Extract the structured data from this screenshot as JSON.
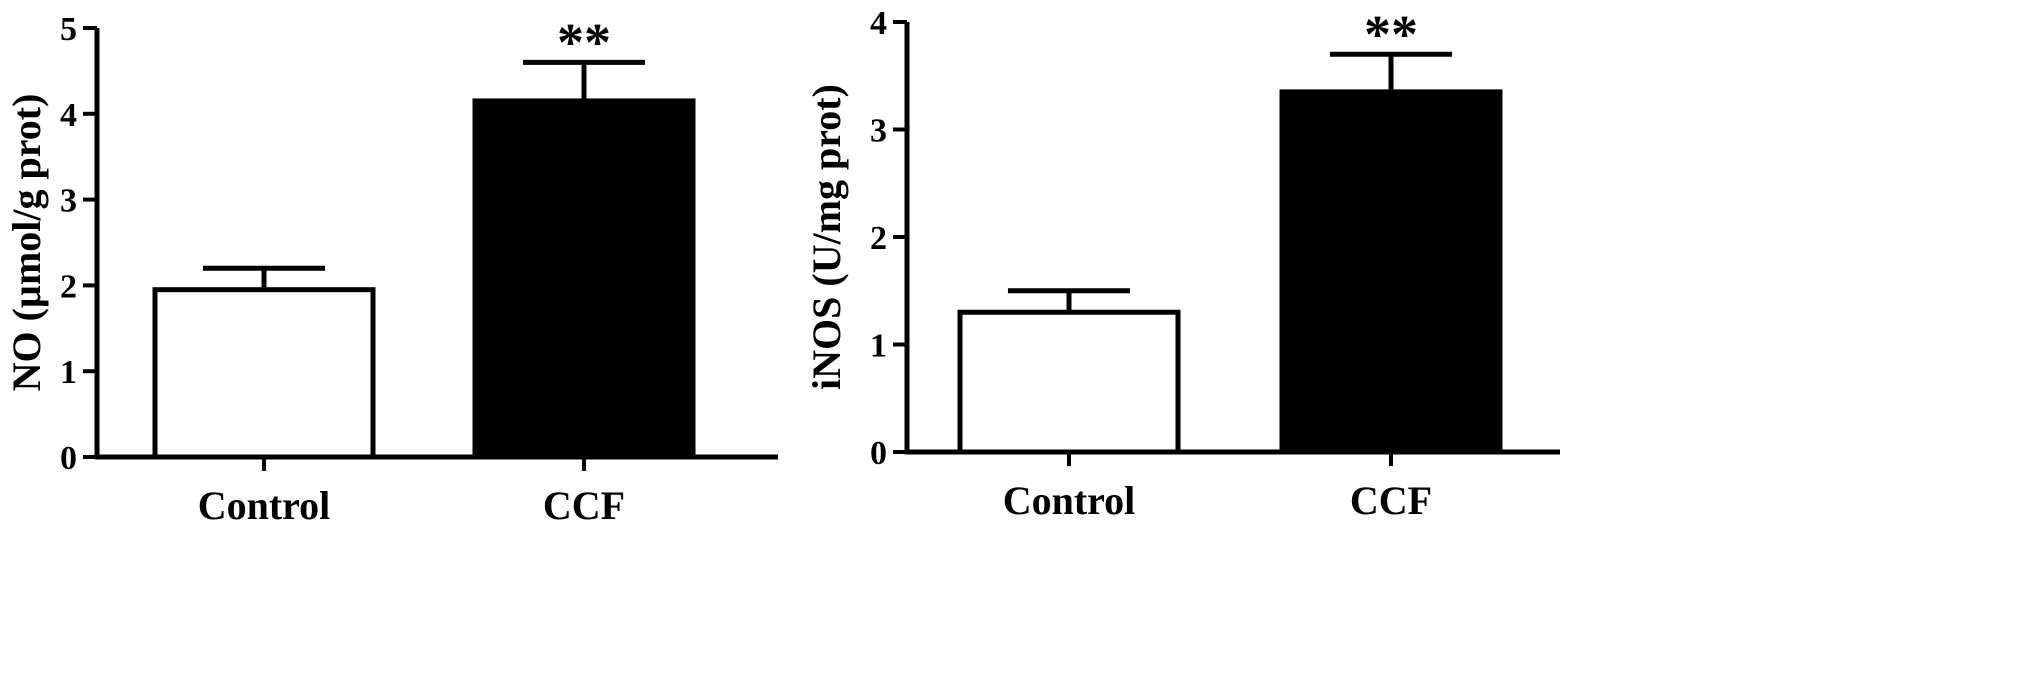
{
  "chart_data": [
    {
      "type": "bar",
      "categories": [
        "Control",
        "CCF"
      ],
      "values": [
        1.95,
        4.15
      ],
      "errors": [
        0.25,
        0.45
      ],
      "bar_colors": [
        "#ffffff",
        "#000000"
      ],
      "significance": [
        "",
        "**"
      ],
      "ylabel": "NO (µmol/g prot)",
      "xlabel": "",
      "ylim": [
        0,
        5
      ],
      "yticks": [
        0,
        1,
        2,
        3,
        4,
        5
      ],
      "grid": false
    },
    {
      "type": "bar",
      "categories": [
        "Control",
        "CCF"
      ],
      "values": [
        1.3,
        3.35
      ],
      "errors": [
        0.2,
        0.35
      ],
      "bar_colors": [
        "#ffffff",
        "#000000"
      ],
      "significance": [
        "",
        "**"
      ],
      "ylabel": "iNOS (U/mg prot)",
      "xlabel": "",
      "ylim": [
        0,
        4
      ],
      "yticks": [
        0,
        1,
        2,
        3,
        4
      ],
      "grid": false
    }
  ]
}
